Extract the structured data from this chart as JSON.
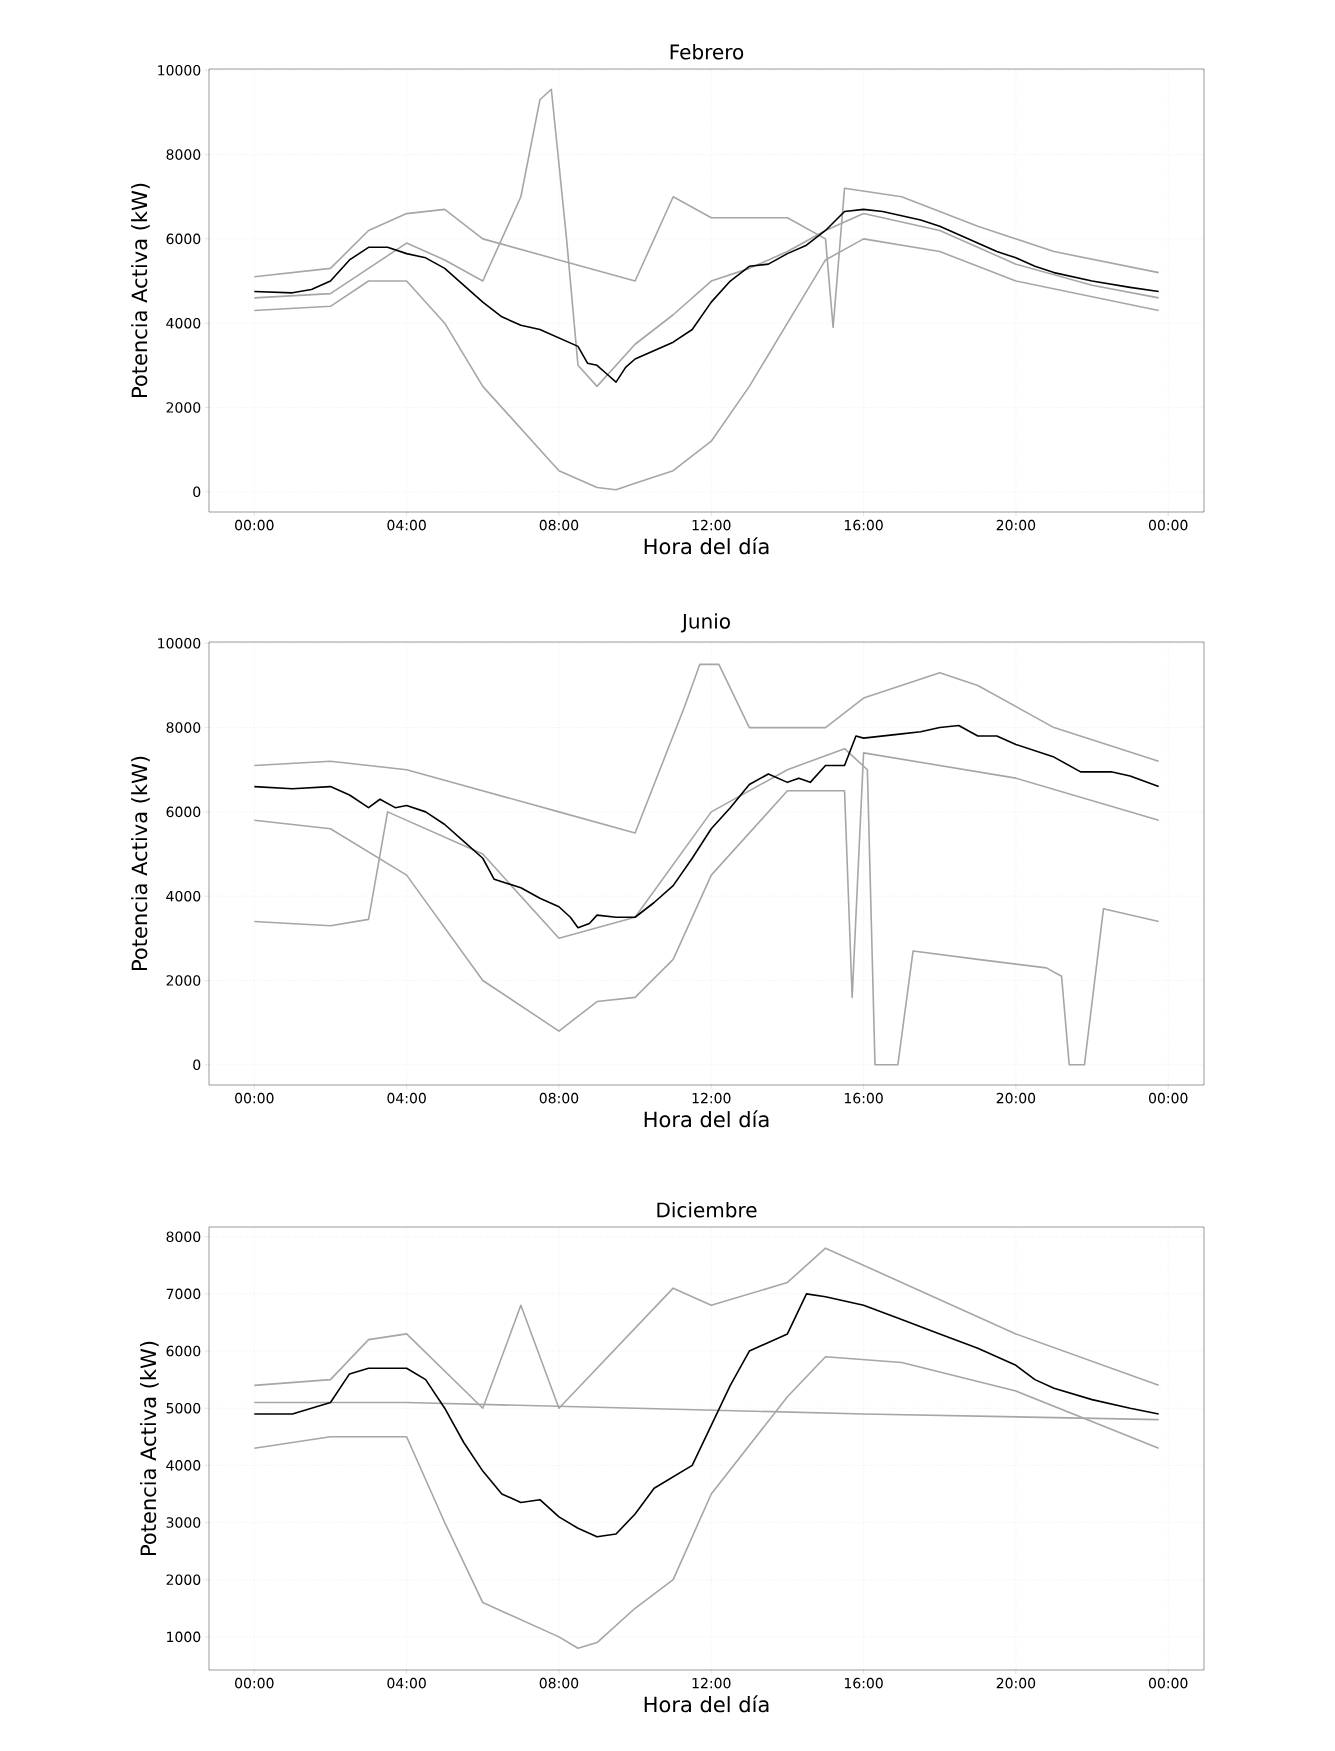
{
  "chart_data": [
    {
      "type": "line",
      "title": "Febrero",
      "xlabel": "Hora del día",
      "ylabel": "Potencia Activa (kW)",
      "xlim": [
        -1.19,
        24.94
      ],
      "ylim": [
        -480,
        10030
      ],
      "xticks": [
        {
          "value": 0,
          "label": "00:00"
        },
        {
          "value": 4,
          "label": "04:00"
        },
        {
          "value": 8,
          "label": "08:00"
        },
        {
          "value": 12,
          "label": "12:00"
        },
        {
          "value": 16,
          "label": "16:00"
        },
        {
          "value": 20,
          "label": "20:00"
        },
        {
          "value": 24,
          "label": "00:00"
        }
      ],
      "yticks": [
        0,
        2000,
        4000,
        6000,
        8000,
        10000
      ],
      "grid": true,
      "series": [
        {
          "color": "#a6a6a6",
          "x": [
            0,
            2,
            4,
            5,
            6,
            7,
            7.5,
            7.8,
            8.2,
            8.5,
            9,
            10,
            11,
            12,
            13,
            14,
            15,
            16,
            18,
            20,
            22,
            23.75
          ],
          "values": [
            4600,
            4700,
            5900,
            5500,
            5000,
            7000,
            9300,
            9550,
            6000,
            3000,
            2500,
            3500,
            4200,
            5000,
            5300,
            5700,
            6200,
            6600,
            6200,
            5400,
            4900,
            4600
          ]
        },
        {
          "color": "#a6a6a6",
          "x": [
            0,
            2,
            3,
            4,
            5,
            6,
            7,
            8,
            9,
            9.5,
            10,
            11,
            12,
            13,
            14,
            15,
            16,
            18,
            20,
            23.75
          ],
          "values": [
            4300,
            4400,
            5000,
            5000,
            4000,
            2500,
            1500,
            500,
            100,
            50,
            200,
            500,
            1200,
            2500,
            4000,
            5500,
            6000,
            5700,
            5000,
            4300
          ]
        },
        {
          "color": "#a6a6a6",
          "x": [
            0,
            2,
            3,
            4,
            5,
            6,
            8,
            10,
            11,
            12,
            14,
            15,
            15.2,
            15.5,
            17,
            19,
            21,
            23.75
          ],
          "values": [
            5100,
            5300,
            6200,
            6600,
            6700,
            6000,
            5500,
            5000,
            7000,
            6500,
            6500,
            6000,
            3900,
            7200,
            7000,
            6300,
            5700,
            5200
          ]
        },
        {
          "color": "#000000",
          "x": [
            0,
            1,
            1.5,
            2,
            2.5,
            3,
            3.5,
            4,
            4.5,
            5,
            5.5,
            6,
            6.5,
            7,
            7.5,
            8,
            8.5,
            8.75,
            9,
            9.25,
            9.5,
            9.75,
            10,
            10.5,
            11,
            11.5,
            12,
            12.5,
            13,
            13.5,
            14,
            14.5,
            15,
            15.5,
            16,
            16.5,
            17,
            17.5,
            18,
            18.5,
            19,
            19.5,
            20,
            20.5,
            21,
            22,
            23,
            23.75
          ],
          "values": [
            4750,
            4720,
            4800,
            5000,
            5500,
            5800,
            5800,
            5650,
            5550,
            5300,
            4900,
            4500,
            4150,
            3950,
            3850,
            3650,
            3450,
            3050,
            3000,
            2800,
            2600,
            2950,
            3150,
            3350,
            3550,
            3850,
            4500,
            5000,
            5350,
            5400,
            5650,
            5850,
            6200,
            6650,
            6700,
            6650,
            6550,
            6450,
            6300,
            6100,
            5900,
            5700,
            5550,
            5350,
            5200,
            5000,
            4850,
            4750
          ]
        }
      ]
    },
    {
      "type": "line",
      "title": "Junio",
      "xlabel": "Hora del día",
      "ylabel": "Potencia Activa (kW)",
      "xlim": [
        -1.19,
        24.94
      ],
      "ylim": [
        -480,
        10030
      ],
      "xticks": [
        {
          "value": 0,
          "label": "00:00"
        },
        {
          "value": 4,
          "label": "04:00"
        },
        {
          "value": 8,
          "label": "08:00"
        },
        {
          "value": 12,
          "label": "12:00"
        },
        {
          "value": 16,
          "label": "16:00"
        },
        {
          "value": 20,
          "label": "20:00"
        },
        {
          "value": 24,
          "label": "00:00"
        }
      ],
      "yticks": [
        0,
        2000,
        4000,
        6000,
        8000,
        10000
      ],
      "grid": true,
      "series": [
        {
          "color": "#a6a6a6",
          "x": [
            0,
            2,
            3,
            3.5,
            6,
            8,
            10,
            12,
            14,
            15.5,
            16.1,
            16.3,
            16.9,
            17.3,
            19,
            20.8,
            21.2,
            21.4,
            21.8,
            22.3,
            23.75
          ],
          "values": [
            3400,
            3300,
            3450,
            6000,
            5000,
            3000,
            3500,
            6000,
            7000,
            7500,
            7000,
            0,
            0,
            2700,
            2500,
            2300,
            2100,
            0,
            0,
            3700,
            3400
          ]
        },
        {
          "color": "#a6a6a6",
          "x": [
            0,
            2,
            4,
            6,
            8,
            9,
            10,
            11,
            12,
            14,
            15.5,
            15.7,
            16,
            20,
            23.75
          ],
          "values": [
            5800,
            5600,
            4500,
            2000,
            800,
            1500,
            1600,
            2500,
            4500,
            6500,
            6500,
            1600,
            7400,
            6800,
            5800
          ]
        },
        {
          "color": "#a6a6a6",
          "x": [
            0,
            2,
            4,
            6,
            8,
            10,
            11.3,
            11.7,
            12.2,
            13,
            15,
            16,
            18,
            19,
            21,
            23.75
          ],
          "values": [
            7100,
            7200,
            7000,
            6500,
            6000,
            5500,
            8500,
            9500,
            9500,
            8000,
            8000,
            8700,
            9300,
            9000,
            8000,
            7200
          ]
        },
        {
          "color": "#000000",
          "x": [
            0,
            1,
            2,
            2.5,
            3,
            3.3,
            3.7,
            4,
            4.5,
            5,
            5.5,
            6,
            6.3,
            7,
            7.5,
            8,
            8.3,
            8.5,
            8.8,
            9,
            9.5,
            10,
            10.5,
            11,
            11.5,
            12,
            12.5,
            13,
            13.5,
            14,
            14.3,
            14.6,
            15,
            15.5,
            15.8,
            16,
            17,
            17.5,
            18,
            18.5,
            19,
            19.5,
            20,
            21,
            21.7,
            22.5,
            23,
            23.75
          ],
          "values": [
            6600,
            6550,
            6600,
            6400,
            6100,
            6300,
            6100,
            6150,
            6000,
            5700,
            5300,
            4900,
            4400,
            4200,
            3950,
            3750,
            3500,
            3250,
            3350,
            3550,
            3500,
            3500,
            3850,
            4250,
            4900,
            5600,
            6100,
            6650,
            6900,
            6700,
            6800,
            6700,
            7100,
            7100,
            7800,
            7750,
            7850,
            7900,
            8000,
            8050,
            7800,
            7800,
            7600,
            7300,
            6950,
            6950,
            6850,
            6600
          ]
        }
      ]
    },
    {
      "type": "line",
      "title": "Diciembre",
      "xlabel": "Hora del día",
      "ylabel": "Potencia Activa (kW)",
      "xlim": [
        -1.19,
        24.94
      ],
      "ylim": [
        420,
        8170
      ],
      "xticks": [
        {
          "value": 0,
          "label": "00:00"
        },
        {
          "value": 4,
          "label": "04:00"
        },
        {
          "value": 8,
          "label": "08:00"
        },
        {
          "value": 12,
          "label": "12:00"
        },
        {
          "value": 16,
          "label": "16:00"
        },
        {
          "value": 20,
          "label": "20:00"
        },
        {
          "value": 24,
          "label": "00:00"
        }
      ],
      "yticks": [
        1000,
        2000,
        3000,
        4000,
        5000,
        6000,
        7000,
        8000
      ],
      "grid": true,
      "series": [
        {
          "color": "#a6a6a6",
          "x": [
            0,
            4,
            16,
            23.75
          ],
          "values": [
            5100,
            5100,
            4900,
            4800
          ]
        },
        {
          "color": "#a6a6a6",
          "x": [
            0,
            2,
            4,
            5,
            6,
            7,
            8,
            8.5,
            9,
            10,
            11,
            12,
            14,
            15,
            17,
            20,
            23.75
          ],
          "values": [
            4300,
            4500,
            4500,
            3000,
            1600,
            1300,
            1000,
            800,
            900,
            1500,
            2000,
            3500,
            5200,
            5900,
            5800,
            5300,
            4300
          ]
        },
        {
          "color": "#a6a6a6",
          "x": [
            0,
            2,
            3,
            4,
            6,
            7,
            8,
            11,
            12,
            14,
            15,
            17,
            20,
            23.75
          ],
          "values": [
            5400,
            5500,
            6200,
            6300,
            5000,
            6800,
            5000,
            7100,
            6800,
            7200,
            7800,
            7200,
            6300,
            5400
          ]
        },
        {
          "color": "#000000",
          "x": [
            0,
            1,
            1.5,
            2,
            2.5,
            3,
            3.5,
            4,
            4.5,
            5,
            5.5,
            6,
            6.5,
            7,
            7.5,
            8,
            8.5,
            9,
            9.5,
            10,
            10.5,
            11,
            11.5,
            12,
            12.5,
            13,
            13.5,
            14,
            14.5,
            15,
            16,
            17,
            18,
            19,
            20,
            20.5,
            21,
            22,
            23,
            23.75
          ],
          "values": [
            4900,
            4900,
            5000,
            5100,
            5600,
            5700,
            5700,
            5700,
            5500,
            5000,
            4400,
            3900,
            3500,
            3350,
            3400,
            3100,
            2900,
            2750,
            2800,
            3150,
            3600,
            3800,
            4000,
            4700,
            5400,
            6000,
            6150,
            6300,
            7000,
            6950,
            6800,
            6550,
            6300,
            6050,
            5750,
            5500,
            5350,
            5150,
            5000,
            4900
          ]
        }
      ]
    }
  ]
}
